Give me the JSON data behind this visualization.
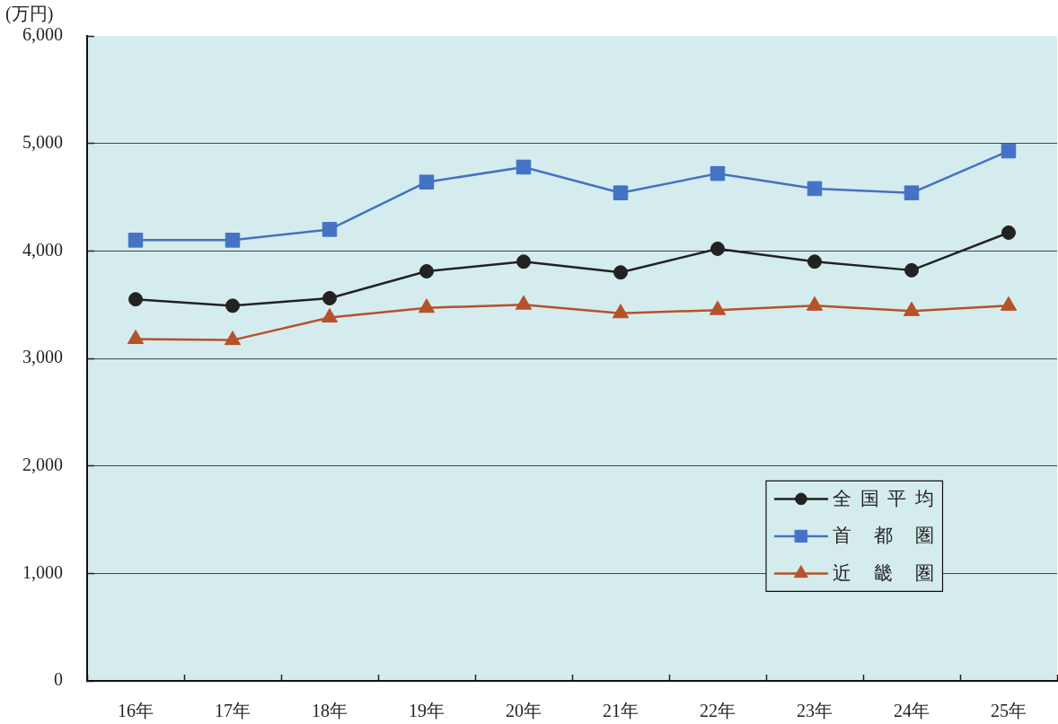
{
  "chart_data": {
    "type": "line",
    "ylabel": "(万円)",
    "categories": [
      "16年",
      "17年",
      "18年",
      "19年",
      "20年",
      "21年",
      "22年",
      "23年",
      "24年",
      "25年"
    ],
    "series": [
      {
        "name": "全国平均",
        "color": "#222222",
        "marker": "circle",
        "values": [
          3550,
          3490,
          3560,
          3810,
          3900,
          3800,
          4020,
          3900,
          3820,
          4170
        ]
      },
      {
        "name": "首都圏",
        "color": "#4472c4",
        "marker": "square",
        "values": [
          4100,
          4100,
          4200,
          4640,
          4780,
          4540,
          4720,
          4580,
          4540,
          4930
        ]
      },
      {
        "name": "近畿圏",
        "color": "#b5522a",
        "marker": "triangle",
        "values": [
          3180,
          3170,
          3380,
          3470,
          3500,
          3420,
          3450,
          3490,
          3440,
          3490
        ]
      }
    ],
    "ylim": [
      0,
      6000
    ],
    "yticks": [
      0,
      {
        "value": 1000,
        "label": "1,000"
      },
      {
        "value": 2000,
        "label": "2,000"
      },
      {
        "value": 3000,
        "label": "3,000"
      },
      {
        "value": 4000,
        "label": "4,000"
      },
      {
        "value": 5000,
        "label": "5,000"
      },
      {
        "value": 6000,
        "label": "6,000"
      }
    ],
    "grid": "y",
    "legend": "bottom right",
    "line_style": "solid"
  }
}
